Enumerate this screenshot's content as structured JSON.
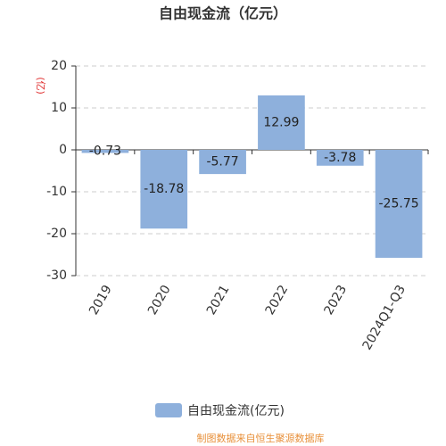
{
  "chart_data": {
    "type": "bar",
    "title": "自由现金流（亿元）",
    "y_label": "(亿)",
    "categories": [
      "2019",
      "2020",
      "2021",
      "2022",
      "2023",
      "2024Q1-Q3"
    ],
    "series": [
      {
        "name": "自由现金流(亿元)",
        "color": "#8eb0dc",
        "values": [
          -0.73,
          -18.78,
          -5.77,
          12.99,
          -3.78,
          -25.75
        ]
      }
    ],
    "ylim": [
      -30,
      20
    ],
    "yticks": [
      -30,
      -20,
      -10,
      0,
      10,
      20
    ],
    "grid": true,
    "legend": "bottom",
    "source": "制图数据来自恒生聚源数据库"
  }
}
